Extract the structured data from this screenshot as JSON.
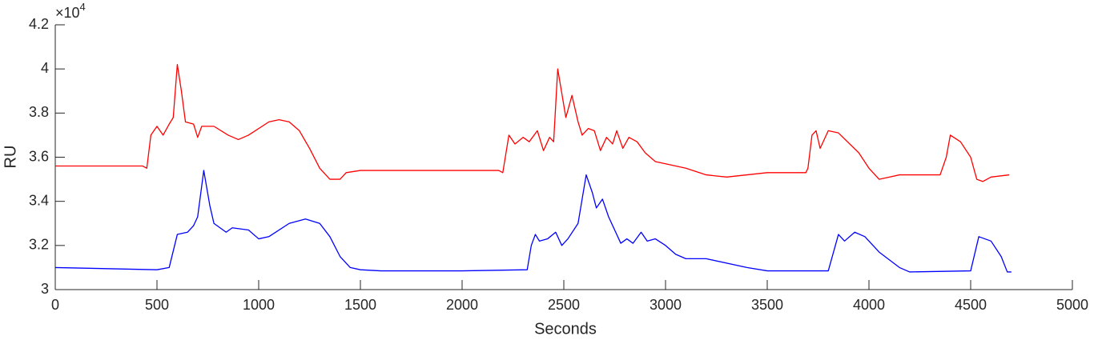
{
  "chart_data": {
    "type": "line",
    "xlabel": "Seconds",
    "ylabel": "RU",
    "y_multiplier": {
      "base": "×10",
      "power": "4"
    },
    "xlim": [
      0,
      5000
    ],
    "xticks": [
      0,
      500,
      1000,
      1500,
      2000,
      2500,
      3000,
      3500,
      4000,
      4500,
      5000
    ],
    "ylim": [
      3,
      4.2
    ],
    "yticks": [
      3,
      3.2,
      3.4,
      3.6,
      3.8,
      4,
      4.2
    ],
    "grid": false,
    "series": [
      {
        "color": "#ff0000",
        "x": [
          0,
          250,
          430,
          450,
          470,
          500,
          530,
          560,
          580,
          600,
          620,
          640,
          680,
          700,
          720,
          780,
          850,
          900,
          950,
          1050,
          1100,
          1150,
          1200,
          1250,
          1300,
          1350,
          1400,
          1430,
          1500,
          2000,
          2180,
          2200,
          2230,
          2260,
          2300,
          2330,
          2370,
          2400,
          2430,
          2450,
          2470,
          2510,
          2540,
          2570,
          2590,
          2620,
          2650,
          2680,
          2710,
          2740,
          2760,
          2790,
          2820,
          2860,
          2900,
          2950,
          3000,
          3100,
          3200,
          3300,
          3400,
          3500,
          3690,
          3700,
          3720,
          3740,
          3760,
          3800,
          3850,
          3950,
          4000,
          4050,
          4100,
          4150,
          4350,
          4380,
          4400,
          4450,
          4500,
          4530,
          4560,
          4600,
          4690
        ],
        "values": [
          3.56,
          3.56,
          3.56,
          3.55,
          3.7,
          3.74,
          3.7,
          3.75,
          3.78,
          4.02,
          3.9,
          3.76,
          3.75,
          3.69,
          3.74,
          3.74,
          3.7,
          3.68,
          3.7,
          3.76,
          3.77,
          3.76,
          3.72,
          3.64,
          3.55,
          3.5,
          3.5,
          3.53,
          3.54,
          3.54,
          3.54,
          3.53,
          3.7,
          3.66,
          3.69,
          3.67,
          3.72,
          3.63,
          3.69,
          3.67,
          4.0,
          3.78,
          3.88,
          3.76,
          3.7,
          3.73,
          3.72,
          3.63,
          3.69,
          3.66,
          3.72,
          3.64,
          3.69,
          3.67,
          3.62,
          3.58,
          3.57,
          3.55,
          3.52,
          3.51,
          3.52,
          3.53,
          3.53,
          3.55,
          3.7,
          3.72,
          3.64,
          3.72,
          3.71,
          3.62,
          3.55,
          3.5,
          3.51,
          3.52,
          3.52,
          3.6,
          3.7,
          3.67,
          3.6,
          3.5,
          3.49,
          3.51,
          3.52
        ]
      },
      {
        "color": "#0000ff",
        "x": [
          0,
          500,
          560,
          600,
          650,
          680,
          700,
          730,
          760,
          780,
          810,
          840,
          870,
          950,
          1000,
          1050,
          1150,
          1230,
          1300,
          1350,
          1400,
          1450,
          1500,
          1600,
          2000,
          2320,
          2340,
          2360,
          2380,
          2420,
          2460,
          2490,
          2520,
          2570,
          2610,
          2640,
          2660,
          2690,
          2720,
          2750,
          2780,
          2810,
          2840,
          2880,
          2910,
          2950,
          3000,
          3050,
          3100,
          3200,
          3400,
          3500,
          3800,
          3850,
          3880,
          3930,
          3980,
          4050,
          4150,
          4200,
          4500,
          4540,
          4600,
          4650,
          4680,
          4700
        ],
        "values": [
          3.1,
          3.09,
          3.1,
          3.25,
          3.26,
          3.29,
          3.33,
          3.54,
          3.38,
          3.3,
          3.28,
          3.26,
          3.28,
          3.27,
          3.23,
          3.24,
          3.3,
          3.32,
          3.3,
          3.24,
          3.15,
          3.1,
          3.09,
          3.085,
          3.085,
          3.09,
          3.2,
          3.25,
          3.22,
          3.23,
          3.26,
          3.2,
          3.23,
          3.3,
          3.52,
          3.44,
          3.37,
          3.41,
          3.33,
          3.27,
          3.21,
          3.23,
          3.21,
          3.26,
          3.22,
          3.23,
          3.2,
          3.16,
          3.14,
          3.14,
          3.1,
          3.085,
          3.085,
          3.25,
          3.22,
          3.26,
          3.24,
          3.17,
          3.1,
          3.08,
          3.085,
          3.24,
          3.22,
          3.15,
          3.08,
          3.08
        ]
      }
    ]
  }
}
